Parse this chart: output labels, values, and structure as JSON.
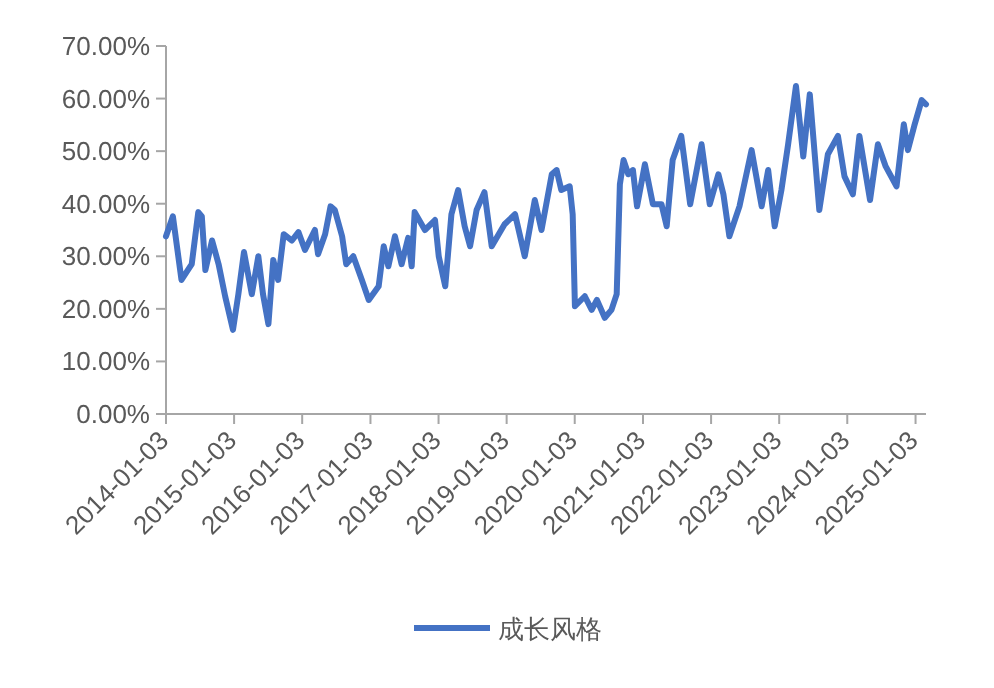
{
  "chart_data": {
    "type": "line",
    "legend": "bottom",
    "grid": false,
    "line_style": "solid",
    "marker": "none",
    "xlim": [
      "2014-01-03",
      "2025-02-28"
    ],
    "xticks": [
      "2014-01-03",
      "2015-01-03",
      "2016-01-03",
      "2017-01-03",
      "2018-01-03",
      "2019-01-03",
      "2020-01-03",
      "2021-01-03",
      "2022-01-03",
      "2023-01-03",
      "2024-01-03",
      "2025-01-03"
    ],
    "ylim": [
      0,
      70
    ],
    "yticks": [
      {
        "value": 0,
        "label": "0.00%"
      },
      {
        "value": 10,
        "label": "10.00%"
      },
      {
        "value": 20,
        "label": "20.00%"
      },
      {
        "value": 30,
        "label": "30.00%"
      },
      {
        "value": 40,
        "label": "40.00%"
      },
      {
        "value": 50,
        "label": "50.00%"
      },
      {
        "value": 60,
        "label": "60.00%"
      },
      {
        "value": 70,
        "label": "70.00%"
      }
    ],
    "x": [
      "2014-01-03",
      "2014-02-09",
      "2014-03-27",
      "2014-05-21",
      "2014-06-25",
      "2014-07-14",
      "2014-08-02",
      "2014-09-07",
      "2014-10-12",
      "2014-11-16",
      "2014-12-28",
      "2015-01-26",
      "2015-02-25",
      "2015-04-08",
      "2015-05-13",
      "2015-06-07",
      "2015-07-06",
      "2015-08-01",
      "2015-08-27",
      "2015-09-26",
      "2015-11-09",
      "2015-12-14",
      "2016-01-18",
      "2016-03-11",
      "2016-03-28",
      "2016-05-05",
      "2016-06-03",
      "2016-06-26",
      "2016-08-04",
      "2016-08-26",
      "2016-10-03",
      "2016-11-18",
      "2016-12-25",
      "2017-02-16",
      "2017-03-15",
      "2017-04-09",
      "2017-05-14",
      "2017-06-19",
      "2017-07-24",
      "2017-08-12",
      "2017-08-28",
      "2017-10-22",
      "2017-12-15",
      "2018-01-04",
      "2018-02-08",
      "2018-03-13",
      "2018-04-18",
      "2018-05-23",
      "2018-06-21",
      "2018-07-26",
      "2018-09-06",
      "2018-10-15",
      "2018-12-23",
      "2019-02-17",
      "2019-04-10",
      "2019-06-03",
      "2019-07-09",
      "2019-09-02",
      "2019-09-28",
      "2019-10-23",
      "2019-12-07",
      "2019-12-23",
      "2020-01-04",
      "2020-02-26",
      "2020-04-03",
      "2020-05-01",
      "2020-06-12",
      "2020-07-18",
      "2020-08-15",
      "2020-09-01",
      "2020-09-21",
      "2020-10-16",
      "2020-11-10",
      "2020-12-02",
      "2021-01-13",
      "2021-02-25",
      "2021-04-12",
      "2021-05-10",
      "2021-06-11",
      "2021-07-27",
      "2021-09-13",
      "2021-11-13",
      "2021-12-27",
      "2022-02-11",
      "2022-03-10",
      "2022-04-11",
      "2022-06-04",
      "2022-08-08",
      "2022-10-01",
      "2022-11-05",
      "2022-12-10",
      "2023-01-15",
      "2023-02-20",
      "2023-04-03",
      "2023-05-12",
      "2023-06-16",
      "2023-08-06",
      "2023-09-21",
      "2023-11-14",
      "2023-12-19",
      "2024-02-02",
      "2024-03-08",
      "2024-05-04",
      "2024-06-15",
      "2024-07-27",
      "2024-09-23",
      "2024-11-01",
      "2024-11-23",
      "2024-12-27",
      "2025-02-05",
      "2025-02-28"
    ],
    "series": [
      {
        "name": "成长风格",
        "color": "#4472c4",
        "values": [
          33.8,
          37.6,
          25.5,
          28.5,
          38.4,
          37.6,
          27.4,
          33,
          28.5,
          22.4,
          16,
          22.8,
          30.8,
          22.8,
          30,
          22.8,
          17.1,
          29.3,
          25.5,
          34.2,
          33,
          34.6,
          31.2,
          35,
          30.4,
          34.2,
          39.5,
          38.8,
          33.8,
          28.5,
          30,
          25.5,
          21.7,
          24.3,
          31.9,
          28.1,
          33.8,
          28.5,
          33.5,
          28.1,
          38.4,
          35,
          36.9,
          30,
          24.3,
          38,
          42.6,
          35.7,
          31.9,
          38.8,
          42.2,
          31.9,
          36.1,
          38,
          30,
          40.7,
          35,
          45.6,
          46.4,
          42.6,
          43.3,
          38,
          20.5,
          22.4,
          19.8,
          21.7,
          18.3,
          19.8,
          22.8,
          43.7,
          48.3,
          45.6,
          46.4,
          39.5,
          47.5,
          39.9,
          39.9,
          35.7,
          48.3,
          52.9,
          39.9,
          51.3,
          39.9,
          45.6,
          41.8,
          33.8,
          39.5,
          50.2,
          39.5,
          46.4,
          35.7,
          42.6,
          51.3,
          62.4,
          49,
          60.8,
          38.8,
          49.4,
          52.9,
          45.2,
          41.8,
          52.9,
          40.7,
          51.3,
          47.1,
          43.3,
          55.1,
          50.2,
          54.8,
          59.7,
          58.9
        ]
      }
    ]
  }
}
